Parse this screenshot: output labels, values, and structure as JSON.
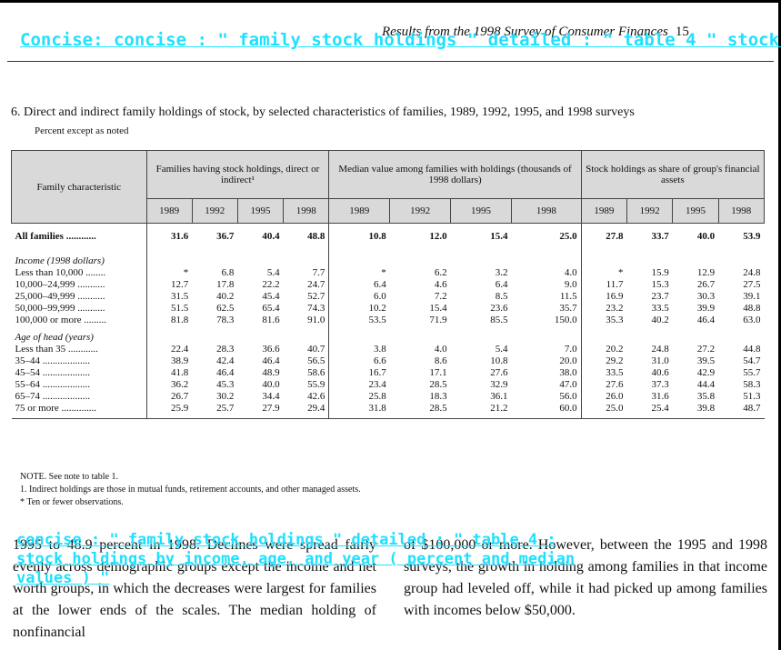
{
  "overlay": {
    "top": "Concise: concise : \" family stock holdings \" detailed : \" table 4 \" stock h",
    "bottom_line1": "concise : \" family stock holdings \" detailed : \" table 4 :",
    "bottom_line2": "stock holdings by income, age, and year ( percent and median",
    "bottom_line3": "values ) \""
  },
  "running_head": {
    "title": "Results from the 1998 Survey of Consumer Finances",
    "page": "15"
  },
  "table": {
    "title": "6.  Direct and indirect family holdings of stock, by selected characteristics of families, 1989, 1992, 1995, and 1998 surveys",
    "subtitle": "Percent except as noted",
    "col_header_family": "Family characteristic",
    "group_headers": [
      "Families having stock holdings, direct or indirect¹",
      "Median value among families with holdings (thousands of 1998 dollars)",
      "Stock holdings as share of group's financial assets"
    ],
    "years": [
      "1989",
      "1992",
      "1995",
      "1998",
      "1989",
      "1992",
      "1995",
      "1998",
      "1989",
      "1992",
      "1995",
      "1998"
    ],
    "all_families": {
      "label": "All families ............",
      "values": [
        "31.6",
        "36.7",
        "40.4",
        "48.8",
        "10.8",
        "12.0",
        "15.4",
        "25.0",
        "27.8",
        "33.7",
        "40.0",
        "53.9"
      ]
    },
    "income_section": "Income (1998 dollars)",
    "income_rows": [
      {
        "label": "Less than 10,000 ........",
        "values": [
          "*",
          "6.8",
          "5.4",
          "7.7",
          "*",
          "6.2",
          "3.2",
          "4.0",
          "*",
          "15.9",
          "12.9",
          "24.8"
        ]
      },
      {
        "label": "10,000–24,999 ...........",
        "values": [
          "12.7",
          "17.8",
          "22.2",
          "24.7",
          "6.4",
          "4.6",
          "6.4",
          "9.0",
          "11.7",
          "15.3",
          "26.7",
          "27.5"
        ]
      },
      {
        "label": "25,000–49,999 ...........",
        "values": [
          "31.5",
          "40.2",
          "45.4",
          "52.7",
          "6.0",
          "7.2",
          "8.5",
          "11.5",
          "16.9",
          "23.7",
          "30.3",
          "39.1"
        ]
      },
      {
        "label": "50,000–99,999 ...........",
        "values": [
          "51.5",
          "62.5",
          "65.4",
          "74.3",
          "10.2",
          "15.4",
          "23.6",
          "35.7",
          "23.2",
          "33.5",
          "39.9",
          "48.8"
        ]
      },
      {
        "label": "100,000 or more .........",
        "values": [
          "81.8",
          "78.3",
          "81.6",
          "91.0",
          "53.5",
          "71.9",
          "85.5",
          "150.0",
          "35.3",
          "40.2",
          "46.4",
          "63.0"
        ]
      }
    ],
    "age_section": "Age of head (years)",
    "age_rows": [
      {
        "label": "Less than 35 ............",
        "values": [
          "22.4",
          "28.3",
          "36.6",
          "40.7",
          "3.8",
          "4.0",
          "5.4",
          "7.0",
          "20.2",
          "24.8",
          "27.2",
          "44.8"
        ]
      },
      {
        "label": "35–44 ...................",
        "values": [
          "38.9",
          "42.4",
          "46.4",
          "56.5",
          "6.6",
          "8.6",
          "10.8",
          "20.0",
          "29.2",
          "31.0",
          "39.5",
          "54.7"
        ]
      },
      {
        "label": "45–54 ...................",
        "values": [
          "41.8",
          "46.4",
          "48.9",
          "58.6",
          "16.7",
          "17.1",
          "27.6",
          "38.0",
          "33.5",
          "40.6",
          "42.9",
          "55.7"
        ]
      },
      {
        "label": "55–64 ...................",
        "values": [
          "36.2",
          "45.3",
          "40.0",
          "55.9",
          "23.4",
          "28.5",
          "32.9",
          "47.0",
          "27.6",
          "37.3",
          "44.4",
          "58.3"
        ]
      },
      {
        "label": "65–74 ...................",
        "values": [
          "26.7",
          "30.2",
          "34.4",
          "42.6",
          "25.8",
          "18.3",
          "36.1",
          "56.0",
          "26.0",
          "31.6",
          "35.8",
          "51.3"
        ]
      },
      {
        "label": "75 or more ..............",
        "values": [
          "25.9",
          "25.7",
          "27.9",
          "29.4",
          "31.8",
          "28.5",
          "21.2",
          "60.0",
          "25.0",
          "25.4",
          "39.8",
          "48.7"
        ]
      }
    ],
    "notes": [
      "NOTE.  See note to table 1.",
      "1. Indirect holdings are those in mutual funds, retirement accounts, and other managed assets.",
      "* Ten or fewer observations."
    ]
  },
  "body": {
    "left": "1995 to 48.9 percent in 1998. Declines were spread fairly evenly across demographic groups except the income and net worth groups, in which the decreases were largest for families at the lower ends of the scales. The median holding of nonfinancial",
    "right": "of $100,000 or more. However, between the 1995 and 1998 surveys, the growth in holding among families in that income group had leveled off, while it had picked up among families with incomes below $50,000."
  }
}
